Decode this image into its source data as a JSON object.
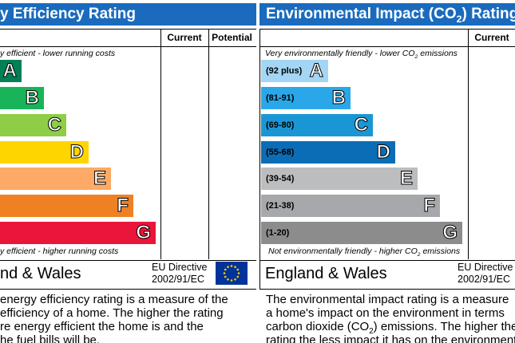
{
  "left": {
    "title": "y Efficiency Rating",
    "col_current": "Current",
    "col_potential": "Potential",
    "top_note": "y efficient - lower running costs",
    "bottom_note": "y efficient - higher running costs",
    "bands": [
      {
        "letter": "A"
      },
      {
        "letter": "B"
      },
      {
        "letter": "C"
      },
      {
        "letter": "D"
      },
      {
        "letter": "E"
      },
      {
        "letter": "F"
      },
      {
        "letter": "G"
      }
    ],
    "region": "nd & Wales",
    "directive_1": "EU Directive",
    "directive_2": "2002/91/EC",
    "description": [
      "energy efficiency rating is a measure of the",
      "efficiency of a home. The higher the rating",
      "re energy efficient the home is and the",
      "he fuel bills will be."
    ]
  },
  "right": {
    "title_before": "Environmental Impact (CO",
    "title_sub": "2",
    "title_after": ") Rating",
    "col_current": "Current",
    "top_note": {
      "before": "Very environmentally friendly - lower CO",
      "sub": "2",
      "after": " emissions"
    },
    "bottom_note": {
      "before": "Not environmentally friendly - higher CO",
      "sub": "2",
      "after": " emissions"
    },
    "bands": [
      {
        "range": "(92 plus)",
        "letter": "A"
      },
      {
        "range": "(81-91)",
        "letter": "B"
      },
      {
        "range": "(69-80)",
        "letter": "C"
      },
      {
        "range": "(55-68)",
        "letter": "D"
      },
      {
        "range": "(39-54)",
        "letter": "E"
      },
      {
        "range": "(21-38)",
        "letter": "F"
      },
      {
        "range": "(1-20)",
        "letter": "G"
      }
    ],
    "region": "England & Wales",
    "directive_1": "EU Directive",
    "directive_2": "2002/91/EC",
    "description": [
      {
        "before": "The environmental impact rating is a measure"
      },
      {
        "before": "a home's impact on the environment in terms"
      },
      {
        "before": "carbon dioxide (CO",
        "sub": "2",
        "after": ") emissions. The higher the"
      },
      {
        "before": "rating the less impact it has on the environment."
      }
    ]
  }
}
